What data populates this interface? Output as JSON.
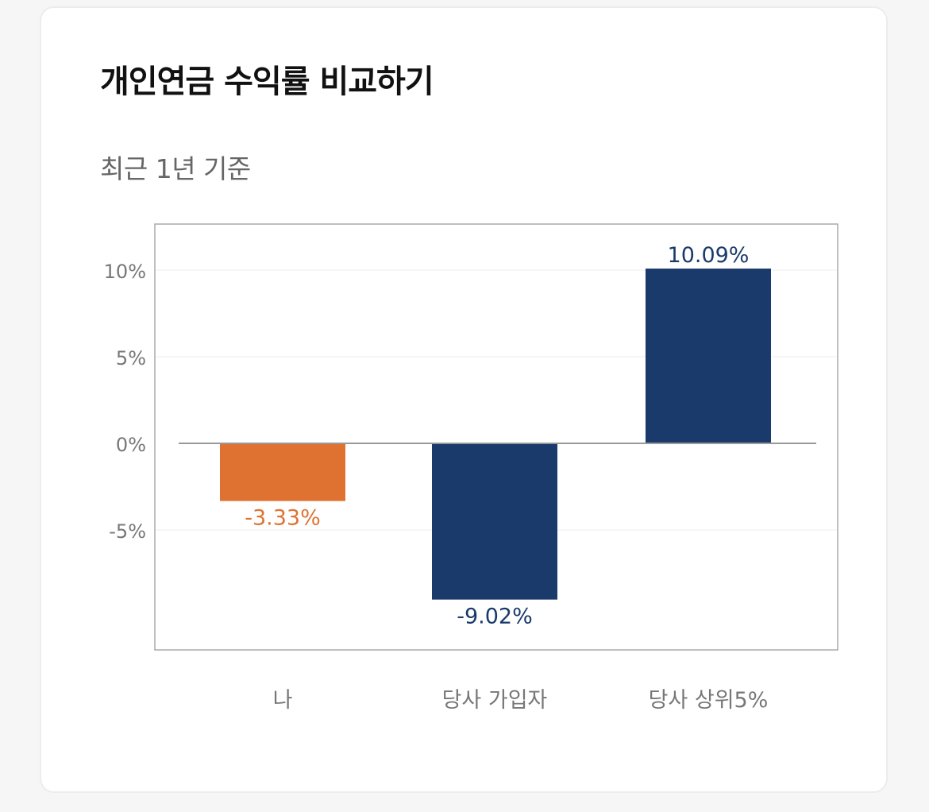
{
  "header": {
    "title": "개인연금 수익률 비교하기",
    "subtitle": "최근 1년 기준"
  },
  "colors": {
    "mine": "#e07231",
    "others": "#1a3a6b",
    "axis_text": "#777777",
    "baseline": "#999999",
    "frame": "#aaaaaa",
    "grid": "#eeeeee"
  },
  "chart_data": {
    "type": "bar",
    "categories": [
      "나",
      "당사 가입자",
      "당사 상위5%"
    ],
    "values": [
      -3.33,
      -9.02,
      10.09
    ],
    "value_labels": [
      "-3.33%",
      "-9.02%",
      "10.09%"
    ],
    "bar_colors": [
      "#e07231",
      "#1a3a6b",
      "#1a3a6b"
    ],
    "yticks": [
      10,
      5,
      0,
      -5
    ],
    "ytick_labels": [
      "10%",
      "5%",
      "0%",
      "-5%"
    ],
    "ylim": [
      -12,
      12.7
    ],
    "grid": true,
    "legend": "none"
  }
}
